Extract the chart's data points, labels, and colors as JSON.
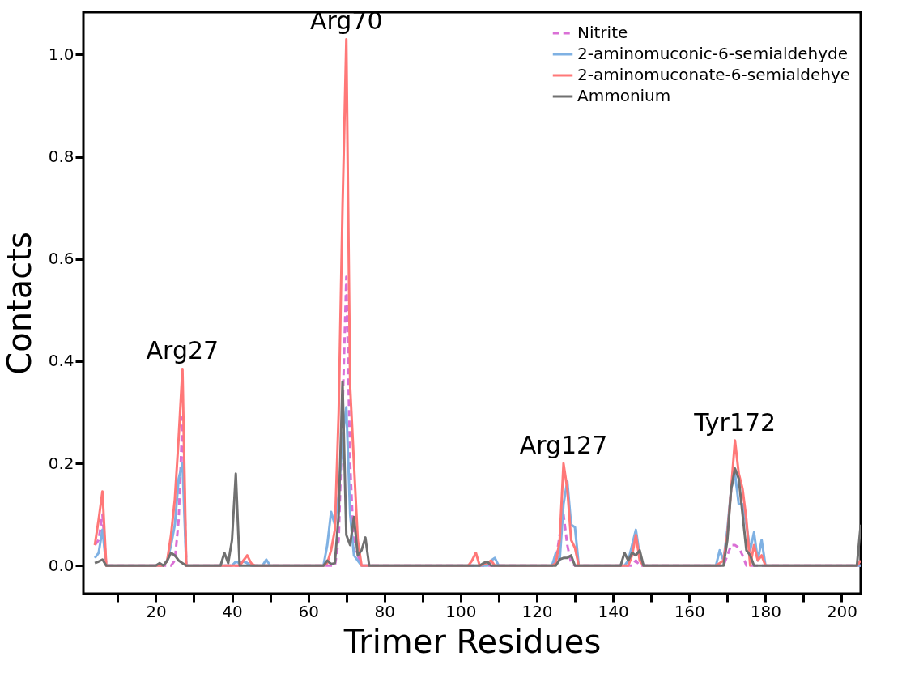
{
  "chart_data": {
    "type": "line",
    "xlabel": "Trimer Residues",
    "ylabel": "Contacts",
    "xlim": [
      1,
      205
    ],
    "ylim": [
      -0.055,
      1.083
    ],
    "xticks": [
      {
        "value": 10,
        "label": null
      },
      20,
      {
        "value": 30,
        "label": null
      },
      40,
      {
        "value": 50,
        "label": null
      },
      60,
      {
        "value": 70,
        "label": null
      },
      80,
      {
        "value": 90,
        "label": null
      },
      100,
      {
        "value": 110,
        "label": null
      },
      120,
      {
        "value": 130,
        "label": null
      },
      140,
      {
        "value": 150,
        "label": null
      },
      160,
      {
        "value": 170,
        "label": null
      },
      180,
      {
        "value": 190,
        "label": null
      },
      200
    ],
    "yticks": [
      {
        "value": 0,
        "label": "0.0"
      },
      0.2,
      0.4,
      0.6,
      0.8,
      {
        "value": 1,
        "label": "1.0"
      }
    ],
    "grid": false,
    "legend": "top right",
    "marker": "none",
    "annotations": [
      {
        "text": "Arg27",
        "x": 27,
        "y": 0.385
      },
      {
        "text": "Arg70",
        "x": 70,
        "y": 1.03
      },
      {
        "text": "Arg127",
        "x": 127,
        "y": 0.2
      },
      {
        "text": "Tyr172",
        "x": 172,
        "y": 0.245
      }
    ],
    "series": [
      {
        "name": "Nitrite",
        "color": "#da70d6",
        "line_style": "dashed",
        "x": [
          4,
          5,
          6,
          7,
          24,
          25,
          26,
          27,
          28,
          42,
          43,
          44,
          45,
          67,
          68,
          69,
          70,
          71,
          72,
          73,
          74,
          124,
          125,
          126,
          127,
          128,
          129,
          130,
          145,
          146,
          147,
          169,
          170,
          171,
          172,
          173,
          174,
          175,
          205
        ],
        "values": [
          0.04,
          0.05,
          0.1,
          0,
          0,
          0.01,
          0.09,
          0.29,
          0,
          0,
          0.01,
          0.005,
          0,
          0,
          0.05,
          0.3,
          0.565,
          0.2,
          0.03,
          0.02,
          0,
          0,
          0.01,
          0.06,
          0.1,
          0.04,
          0.005,
          0,
          0,
          0.01,
          0,
          0,
          0.02,
          0.04,
          0.04,
          0.035,
          0.02,
          0,
          0
        ]
      },
      {
        "name": "2-aminomuconic-6-semialdehyde",
        "color": "#7fb1e3",
        "line_style": "solid",
        "x": [
          4,
          5,
          6,
          7,
          22,
          23,
          24,
          25,
          26,
          27,
          28,
          40,
          41,
          42,
          43,
          44,
          45,
          48,
          49,
          50,
          64,
          65,
          66,
          67,
          68,
          69,
          70,
          71,
          72,
          73,
          74,
          107,
          108,
          109,
          110,
          124,
          125,
          126,
          127,
          128,
          129,
          130,
          131,
          143,
          144,
          145,
          146,
          147,
          148,
          167,
          168,
          169,
          170,
          171,
          172,
          173,
          174,
          175,
          176,
          177,
          178,
          179,
          180,
          205
        ],
        "values": [
          0.015,
          0.025,
          0.07,
          0,
          0,
          0.01,
          0.04,
          0.08,
          0.17,
          0.2,
          0,
          0,
          0.008,
          0.005,
          0.008,
          0.005,
          0,
          0,
          0.012,
          0,
          0,
          0.04,
          0.105,
          0.08,
          0.14,
          0.25,
          0.31,
          0.1,
          0.02,
          0.01,
          0,
          0,
          0.01,
          0.015,
          0,
          0,
          0.025,
          0.01,
          0.12,
          0.165,
          0.08,
          0.075,
          0,
          0,
          0.01,
          0.04,
          0.07,
          0.02,
          0,
          0,
          0.03,
          0.01,
          0.07,
          0.15,
          0.18,
          0.12,
          0.12,
          0.08,
          0.03,
          0.065,
          0.01,
          0.05,
          0,
          0
        ]
      },
      {
        "name": "2-aminomuconate-6-semialdehye",
        "color": "#ff7878",
        "line_style": "solid",
        "x": [
          4,
          5,
          6,
          7,
          22,
          23,
          24,
          25,
          26,
          27,
          28,
          42,
          43,
          44,
          45,
          46,
          64,
          65,
          66,
          67,
          68,
          69,
          70,
          71,
          72,
          73,
          74,
          102,
          103,
          104,
          105,
          107,
          108,
          109,
          124,
          125,
          126,
          127,
          128,
          129,
          130,
          131,
          144,
          145,
          146,
          147,
          148,
          167,
          168,
          169,
          170,
          171,
          172,
          173,
          174,
          175,
          176,
          177,
          178,
          179,
          180,
          204,
          205
        ],
        "values": [
          0.04,
          0.09,
          0.145,
          0,
          0,
          0.01,
          0.06,
          0.13,
          0.25,
          0.385,
          0,
          0,
          0.01,
          0.02,
          0.005,
          0,
          0,
          0.005,
          0.03,
          0.07,
          0.3,
          0.7,
          1.03,
          0.35,
          0.2,
          0.05,
          0,
          0,
          0.01,
          0.025,
          0,
          0.005,
          0.01,
          0,
          0,
          0.005,
          0.05,
          0.2,
          0.15,
          0.05,
          0.035,
          0,
          0,
          0.02,
          0.06,
          0.01,
          0,
          0,
          0.005,
          0.01,
          0.06,
          0.15,
          0.245,
          0.18,
          0.15,
          0.09,
          0,
          0.04,
          0.01,
          0.02,
          0,
          0,
          0.01
        ]
      },
      {
        "name": "Ammonium",
        "color": "#707070",
        "line_style": "solid",
        "x": [
          4,
          5,
          6,
          7,
          20,
          21,
          22,
          23,
          24,
          25,
          26,
          27,
          28,
          37,
          38,
          39,
          40,
          41,
          42,
          64,
          65,
          66,
          67,
          68,
          69,
          70,
          71,
          72,
          73,
          74,
          75,
          76,
          105,
          106,
          107,
          108,
          125,
          126,
          127,
          128,
          129,
          130,
          142,
          143,
          144,
          145,
          146,
          147,
          148,
          169,
          170,
          171,
          172,
          173,
          174,
          175,
          176,
          177,
          204,
          205
        ],
        "values": [
          0.005,
          0.008,
          0.012,
          0,
          0,
          0.005,
          0,
          0.01,
          0.025,
          0.02,
          0.01,
          0.005,
          0,
          0,
          0.025,
          0.005,
          0.05,
          0.18,
          0,
          0,
          0.01,
          0.003,
          0.005,
          0.1,
          0.36,
          0.06,
          0.04,
          0.095,
          0.02,
          0.03,
          0.055,
          0,
          0,
          0.005,
          0.008,
          0,
          0,
          0.012,
          0.015,
          0.015,
          0.02,
          0,
          0,
          0.025,
          0.01,
          0.025,
          0.02,
          0.03,
          0,
          0,
          0.05,
          0.15,
          0.19,
          0.17,
          0.1,
          0.03,
          0.02,
          0,
          0,
          0.08
        ]
      }
    ]
  }
}
